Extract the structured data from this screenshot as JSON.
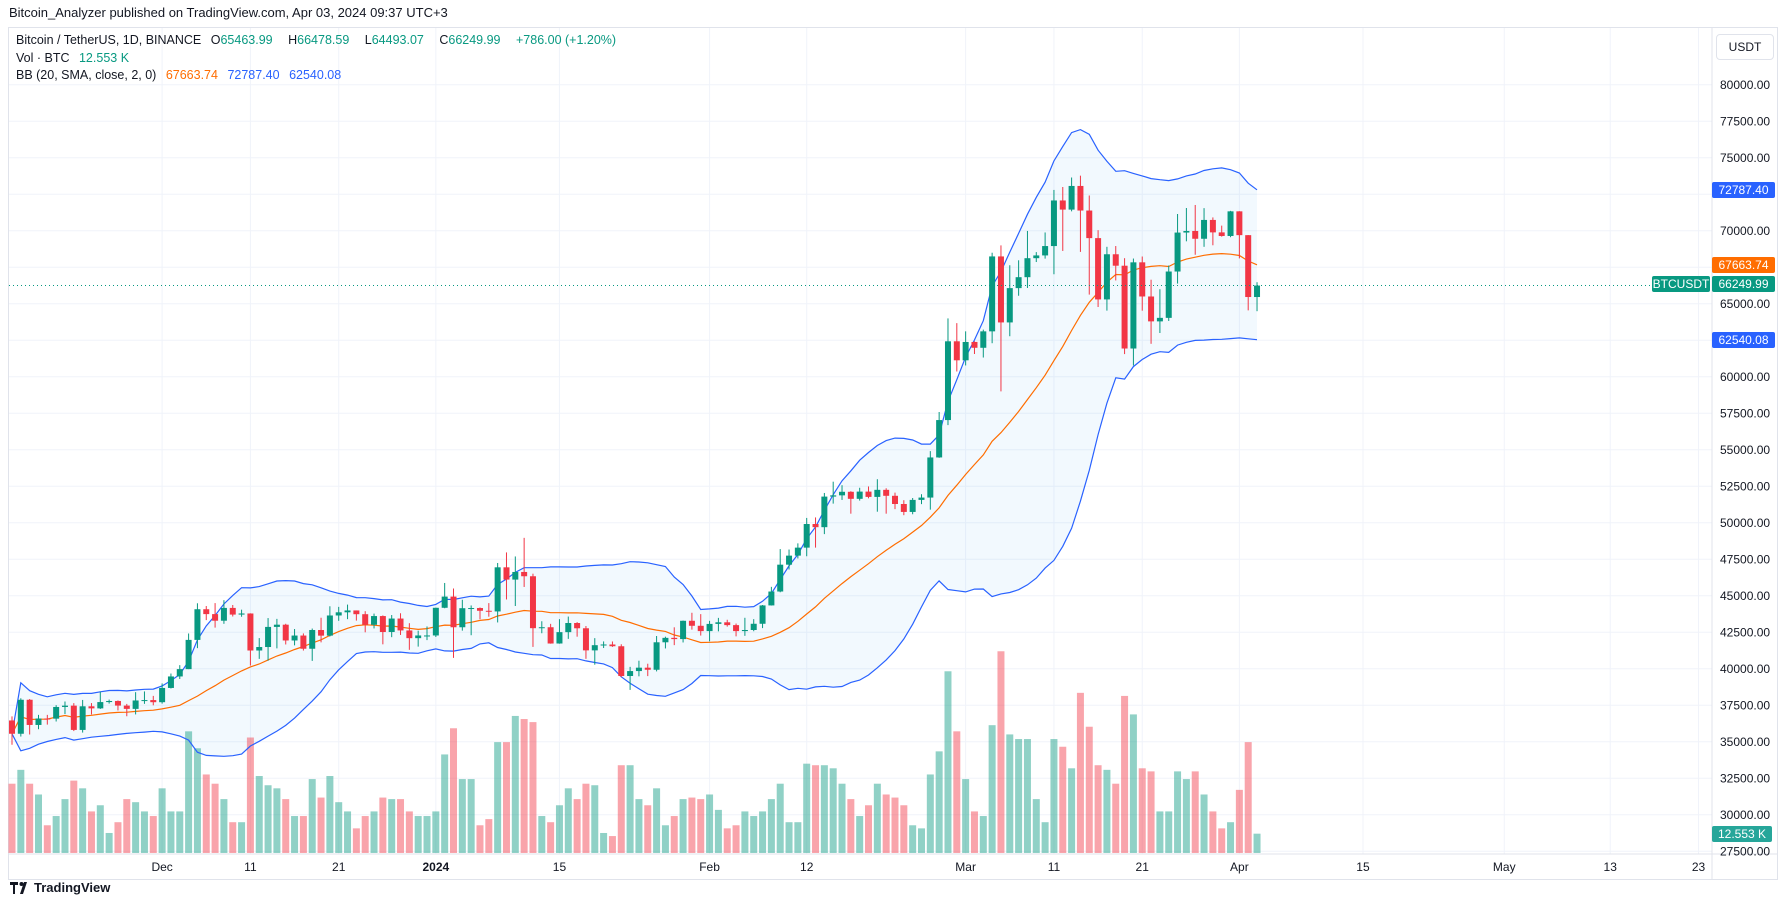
{
  "publisher_line": "Bitcoin_Analyzer published on TradingView.com, Apr 03, 2024 09:37 UTC+3",
  "legend": {
    "symbol": "Bitcoin / TetherUS, 1D, BINANCE",
    "open_label": "O",
    "open": "65463.99",
    "high_label": "H",
    "high": "66478.59",
    "low_label": "L",
    "low": "64493.07",
    "close_label": "C",
    "close": "66249.99",
    "change": "+786.00 (+1.20%)",
    "vol_label": "Vol · BTC",
    "vol_value": "12.553 K",
    "bb_label": "BB (20, SMA, close, 2, 0)",
    "bb_basis": "67663.74",
    "bb_upper": "72787.40",
    "bb_lower": "62540.08"
  },
  "currency_button": "USDT",
  "symbol_tag": "BTCUSDT",
  "price_tags": {
    "upper": "72787.40",
    "basis": "67663.74",
    "last": "66249.99",
    "lower": "62540.08",
    "volume": "12.553 K"
  },
  "brand": "TradingView",
  "colors": {
    "up": "#089981",
    "down": "#f23645",
    "bb_band": "#2962ff",
    "bb_basis": "#ff6d00",
    "volume_tag": "#26a69a"
  },
  "chart_data": {
    "type": "candlestick",
    "ylim": [
      27500,
      80000
    ],
    "y_ticks": [
      "80000.00",
      "77500.00",
      "75000.00",
      "70000.00",
      "65000.00",
      "60000.00",
      "57500.00",
      "55000.00",
      "52500.00",
      "50000.00",
      "47500.00",
      "45000.00",
      "42500.00",
      "40000.00",
      "37500.00",
      "35000.00",
      "32500.00",
      "30000.00",
      "27500.00"
    ],
    "x_ticks": [
      {
        "label": "Dec",
        "date": "2023-12-01"
      },
      {
        "label": "11",
        "date": "2023-12-11"
      },
      {
        "label": "21",
        "date": "2023-12-21"
      },
      {
        "label": "2024",
        "date": "2024-01-01"
      },
      {
        "label": "15",
        "date": "2024-01-15"
      },
      {
        "label": "Feb",
        "date": "2024-02-01"
      },
      {
        "label": "12",
        "date": "2024-02-12"
      },
      {
        "label": "Mar",
        "date": "2024-03-01"
      },
      {
        "label": "11",
        "date": "2024-03-11"
      },
      {
        "label": "21",
        "date": "2024-03-21"
      },
      {
        "label": "Apr",
        "date": "2024-04-01"
      },
      {
        "label": "15",
        "date": "2024-04-15"
      },
      {
        "label": "May",
        "date": "2024-05-01"
      },
      {
        "label": "13",
        "date": "2024-05-13"
      },
      {
        "label": "23",
        "date": "2024-05-23"
      }
    ],
    "grid": true,
    "start_date": "2023-11-14",
    "columns": [
      "open",
      "high",
      "low",
      "close",
      "volume_k"
    ],
    "candles": [
      [
        36462,
        36744,
        34800,
        35551,
        45
      ],
      [
        35551,
        37980,
        35360,
        37880,
        54
      ],
      [
        37880,
        37930,
        35500,
        36154,
        45
      ],
      [
        36154,
        36845,
        35862,
        36596,
        38
      ],
      [
        36596,
        36845,
        36178,
        36585,
        18
      ],
      [
        36585,
        37509,
        36390,
        37386,
        24
      ],
      [
        37386,
        37760,
        36900,
        37476,
        35
      ],
      [
        37476,
        37649,
        35735,
        35813,
        47
      ],
      [
        35813,
        37867,
        35632,
        37432,
        42
      ],
      [
        37432,
        37653,
        36870,
        37289,
        27
      ],
      [
        37289,
        38431,
        37251,
        37721,
        31
      ],
      [
        37721,
        37892,
        37617,
        37796,
        13
      ],
      [
        37796,
        37835,
        37148,
        37480,
        20
      ],
      [
        37480,
        37596,
        36750,
        37255,
        35
      ],
      [
        37255,
        38400,
        36874,
        37831,
        33
      ],
      [
        37831,
        38450,
        37600,
        37858,
        27
      ],
      [
        37858,
        38145,
        37500,
        37712,
        24
      ],
      [
        37712,
        38999,
        37615,
        38688,
        42
      ],
      [
        38688,
        39676,
        38650,
        39476,
        27
      ],
      [
        39476,
        40250,
        39300,
        39978,
        27
      ],
      [
        39978,
        42420,
        39978,
        41980,
        79
      ],
      [
        41980,
        44488,
        41415,
        44080,
        68
      ],
      [
        44080,
        44300,
        43335,
        43746,
        51
      ],
      [
        43746,
        44500,
        42821,
        43293,
        45
      ],
      [
        43293,
        44700,
        43081,
        44170,
        35
      ],
      [
        44170,
        44370,
        43583,
        43713,
        20
      ],
      [
        43713,
        44050,
        43565,
        43789,
        20
      ],
      [
        43789,
        43800,
        40222,
        41253,
        75
      ],
      [
        41253,
        42104,
        40680,
        41492,
        50
      ],
      [
        41492,
        43475,
        40555,
        42869,
        44
      ],
      [
        42869,
        43420,
        41400,
        43022,
        42
      ],
      [
        43022,
        43085,
        41666,
        41940,
        35
      ],
      [
        41940,
        42724,
        41605,
        42278,
        24
      ],
      [
        42278,
        42424,
        41250,
        41374,
        24
      ],
      [
        41374,
        42756,
        40542,
        42657,
        48
      ],
      [
        42657,
        43497,
        41811,
        42271,
        36
      ],
      [
        42271,
        44283,
        42213,
        43652,
        50
      ],
      [
        43652,
        44242,
        43286,
        43869,
        33
      ],
      [
        43869,
        44398,
        43400,
        43997,
        27
      ],
      [
        43997,
        43997,
        43300,
        43740,
        16
      ],
      [
        43740,
        43946,
        42500,
        43016,
        24
      ],
      [
        43016,
        43781,
        42765,
        43613,
        27
      ],
      [
        43613,
        43655,
        41676,
        42520,
        36
      ],
      [
        42520,
        43683,
        42167,
        43442,
        35
      ],
      [
        43442,
        43804,
        42318,
        42627,
        35
      ],
      [
        42627,
        43124,
        41300,
        42099,
        27
      ],
      [
        42099,
        42612,
        41520,
        42283,
        24
      ],
      [
        42283,
        42899,
        41965,
        42283,
        24
      ],
      [
        42283,
        44186,
        42180,
        44179,
        27
      ],
      [
        44179,
        45879,
        44148,
        44946,
        64
      ],
      [
        44946,
        45500,
        40750,
        42845,
        81
      ],
      [
        42845,
        44729,
        42613,
        44151,
        48
      ],
      [
        44151,
        44340,
        42300,
        44162,
        48
      ],
      [
        44162,
        44202,
        43400,
        43974,
        18
      ],
      [
        43974,
        44500,
        43570,
        43929,
        22
      ],
      [
        43929,
        47248,
        43175,
        46951,
        72
      ],
      [
        46951,
        47972,
        44748,
        46110,
        72
      ],
      [
        46110,
        47695,
        44300,
        46633,
        89
      ],
      [
        46633,
        48969,
        45606,
        46339,
        87
      ],
      [
        46339,
        46515,
        41500,
        42782,
        85
      ],
      [
        42782,
        43257,
        42436,
        42847,
        24
      ],
      [
        42847,
        43079,
        41720,
        41732,
        20
      ],
      [
        41732,
        43400,
        41718,
        42511,
        31
      ],
      [
        42511,
        43578,
        42050,
        43137,
        42
      ],
      [
        43137,
        43198,
        42200,
        42776,
        35
      ],
      [
        42776,
        42930,
        40683,
        41262,
        45
      ],
      [
        41262,
        42100,
        40280,
        41618,
        44
      ],
      [
        41618,
        41875,
        41423,
        41665,
        13
      ],
      [
        41665,
        41872,
        41500,
        41545,
        11
      ],
      [
        41545,
        41680,
        39432,
        39507,
        57
      ],
      [
        39507,
        40133,
        38555,
        39845,
        57
      ],
      [
        39845,
        40555,
        39484,
        40077,
        35
      ],
      [
        40077,
        40348,
        39500,
        39934,
        31
      ],
      [
        39934,
        42246,
        39822,
        41816,
        42
      ],
      [
        41816,
        42200,
        41394,
        42120,
        18
      ],
      [
        42120,
        42842,
        41620,
        42035,
        24
      ],
      [
        42035,
        43305,
        41804,
        43289,
        35
      ],
      [
        43289,
        43838,
        42683,
        42946,
        36
      ],
      [
        42946,
        43745,
        42276,
        42582,
        35
      ],
      [
        42582,
        43285,
        41884,
        43075,
        38
      ],
      [
        43075,
        43488,
        42565,
        43185,
        28
      ],
      [
        43185,
        43359,
        42890,
        42992,
        16
      ],
      [
        42992,
        43100,
        42222,
        42583,
        18
      ],
      [
        42583,
        43494,
        42258,
        42658,
        27
      ],
      [
        42658,
        43400,
        42574,
        43084,
        24
      ],
      [
        43084,
        44368,
        42788,
        44341,
        27
      ],
      [
        44341,
        45614,
        44332,
        45293,
        35
      ],
      [
        45293,
        48200,
        45242,
        47132,
        45
      ],
      [
        47132,
        48170,
        46800,
        47751,
        20
      ],
      [
        47751,
        48592,
        47557,
        48299,
        20
      ],
      [
        48299,
        50334,
        47710,
        49917,
        58
      ],
      [
        49917,
        50368,
        48300,
        49700,
        57
      ],
      [
        49700,
        52043,
        49225,
        51795,
        57
      ],
      [
        51795,
        52816,
        51314,
        51880,
        55
      ],
      [
        51880,
        52575,
        51566,
        52124,
        45
      ],
      [
        52124,
        52162,
        50625,
        51642,
        35
      ],
      [
        51642,
        52400,
        51521,
        52137,
        24
      ],
      [
        52137,
        52488,
        51677,
        51774,
        31
      ],
      [
        51774,
        52985,
        50760,
        52258,
        45
      ],
      [
        52258,
        52366,
        50625,
        51849,
        38
      ],
      [
        51849,
        52065,
        50940,
        51288,
        36
      ],
      [
        51288,
        51548,
        50521,
        50744,
        31
      ],
      [
        50744,
        51698,
        50585,
        51568,
        18
      ],
      [
        51568,
        51958,
        51279,
        51728,
        16
      ],
      [
        51728,
        54910,
        50901,
        54476,
        51
      ],
      [
        54476,
        57588,
        54450,
        57037,
        66
      ],
      [
        57037,
        64000,
        56691,
        62432,
        118
      ],
      [
        62432,
        63676,
        60364,
        61130,
        79
      ],
      [
        61130,
        63114,
        60777,
        62387,
        48
      ],
      [
        62387,
        62433,
        61561,
        61987,
        27
      ],
      [
        61987,
        63231,
        61320,
        63113,
        24
      ],
      [
        63113,
        68499,
        62300,
        68245,
        83
      ],
      [
        68245,
        69000,
        59005,
        63724,
        131
      ],
      [
        63724,
        67641,
        62779,
        66074,
        77
      ],
      [
        66074,
        67980,
        65551,
        66823,
        74
      ],
      [
        66823,
        69990,
        66082,
        68124,
        74
      ],
      [
        68124,
        68541,
        67861,
        68313,
        35
      ],
      [
        68313,
        69887,
        68094,
        68955,
        20
      ],
      [
        68955,
        72800,
        67024,
        72078,
        74
      ],
      [
        72078,
        73000,
        68620,
        71452,
        69
      ],
      [
        71452,
        73650,
        71333,
        73072,
        55
      ],
      [
        73072,
        73777,
        68555,
        71388,
        104
      ],
      [
        71388,
        72419,
        65630,
        69499,
        82
      ],
      [
        69499,
        70043,
        64781,
        65300,
        57
      ],
      [
        65300,
        68904,
        64533,
        68393,
        54
      ],
      [
        68393,
        68957,
        66600,
        67609,
        45
      ],
      [
        67609,
        68124,
        61555,
        61937,
        102
      ],
      [
        61937,
        68100,
        60775,
        67840,
        90
      ],
      [
        67840,
        68240,
        64529,
        65501,
        55
      ],
      [
        65501,
        66650,
        62260,
        63796,
        53
      ],
      [
        63796,
        65999,
        63000,
        64037,
        27
      ],
      [
        64037,
        67622,
        63825,
        67211,
        27
      ],
      [
        67211,
        71150,
        66385,
        69880,
        53
      ],
      [
        69880,
        71561,
        69280,
        69988,
        48
      ],
      [
        69988,
        71769,
        68359,
        69455,
        53
      ],
      [
        69455,
        71552,
        68903,
        70744,
        38
      ],
      [
        70744,
        70916,
        69009,
        69892,
        27
      ],
      [
        69892,
        70355,
        69601,
        69645,
        16
      ],
      [
        69645,
        71366,
        69562,
        71333,
        20
      ],
      [
        71333,
        71342,
        68110,
        69702,
        41
      ],
      [
        69702,
        69708,
        64550,
        65463.99,
        72
      ],
      [
        65463.99,
        66478.59,
        64493.07,
        66249.99,
        12.553
      ]
    ],
    "indicator": "Bollinger Bands (20, SMA, close, 2)"
  }
}
